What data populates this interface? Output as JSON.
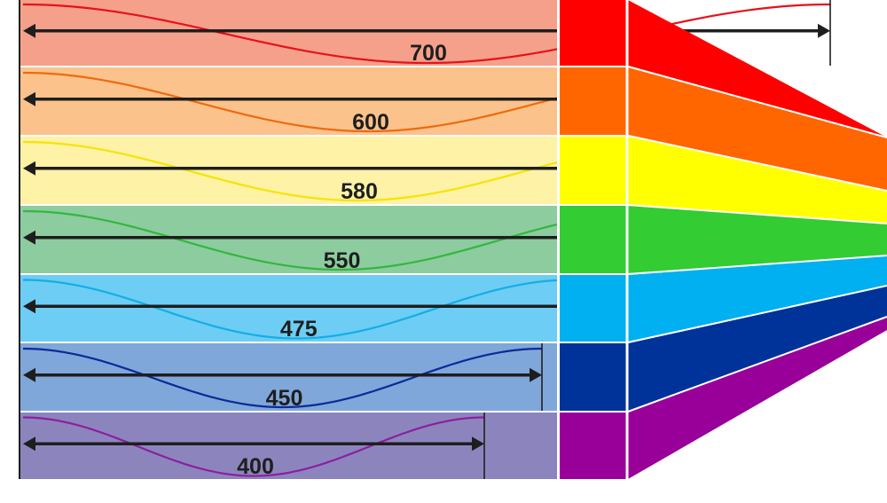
{
  "bands": [
    {
      "label": "700",
      "wavelength": 700,
      "bar_color": "#f4a08a",
      "wave_color": "#e8101c",
      "swatch_color": "#ff0000"
    },
    {
      "label": "600",
      "wavelength": 600,
      "bar_color": "#fcc28c",
      "wave_color": "#ef6a0c",
      "swatch_color": "#ff6600"
    },
    {
      "label": "580",
      "wavelength": 580,
      "bar_color": "#fdf2a6",
      "wave_color": "#f6e400",
      "swatch_color": "#ffff00"
    },
    {
      "label": "550",
      "wavelength": 550,
      "bar_color": "#8dcc9f",
      "wave_color": "#33b73e",
      "swatch_color": "#33cc33"
    },
    {
      "label": "475",
      "wavelength": 475,
      "bar_color": "#6dcdf4",
      "wave_color": "#14aee5",
      "swatch_color": "#00b0f0"
    },
    {
      "label": "450",
      "wavelength": 450,
      "bar_color": "#7fa7d9",
      "wave_color": "#0a2a9a",
      "swatch_color": "#003399"
    },
    {
      "label": "400",
      "wavelength": 400,
      "bar_color": "#8c85bd",
      "wave_color": "#8b1fa0",
      "swatch_color": "#990099"
    }
  ],
  "line_color": "#1e1e1e",
  "divider_color": "#ffffff"
}
